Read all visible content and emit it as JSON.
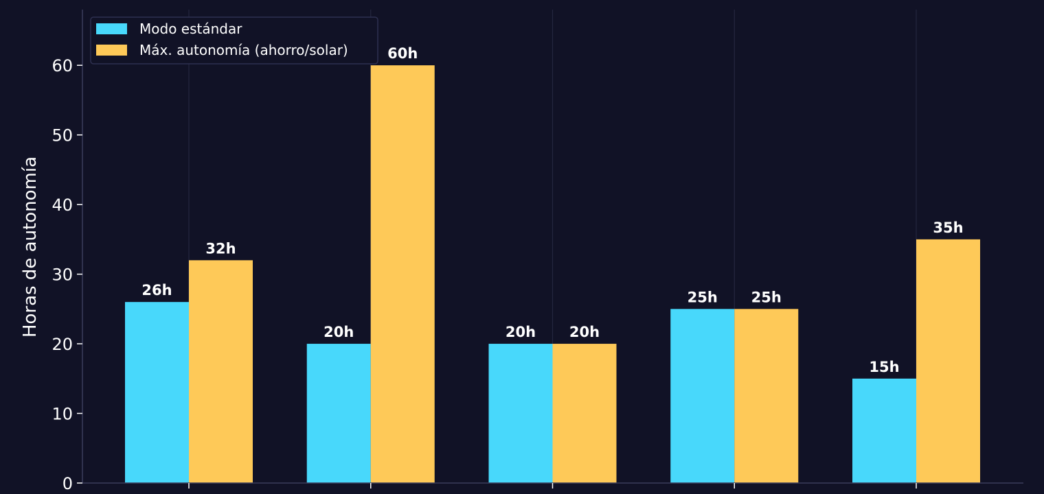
{
  "colors": {
    "background": "#111226",
    "series_standard": "#48d8fb",
    "series_max": "#fec958",
    "grid": "#25273f",
    "axis": "#3a3c5c",
    "text": "#ffffff"
  },
  "chart_data": {
    "type": "bar",
    "categories": [
      "",
      "",
      "",
      "",
      ""
    ],
    "series": [
      {
        "name": "Modo estándar",
        "values": [
          26,
          20,
          20,
          25,
          15
        ]
      },
      {
        "name": "Máx. autonomía (ahorro/solar)",
        "values": [
          32,
          60,
          20,
          25,
          35
        ]
      }
    ],
    "value_labels": [
      [
        "26h",
        "20h",
        "20h",
        "25h",
        "15h"
      ],
      [
        "32h",
        "60h",
        "20h",
        "25h",
        "35h"
      ]
    ],
    "ylabel": "Horas de autonomía",
    "ylim": [
      0,
      68
    ],
    "yticks": [
      0,
      10,
      20,
      30,
      40,
      50,
      60
    ],
    "grid": "vertical",
    "legend": "top-left"
  }
}
